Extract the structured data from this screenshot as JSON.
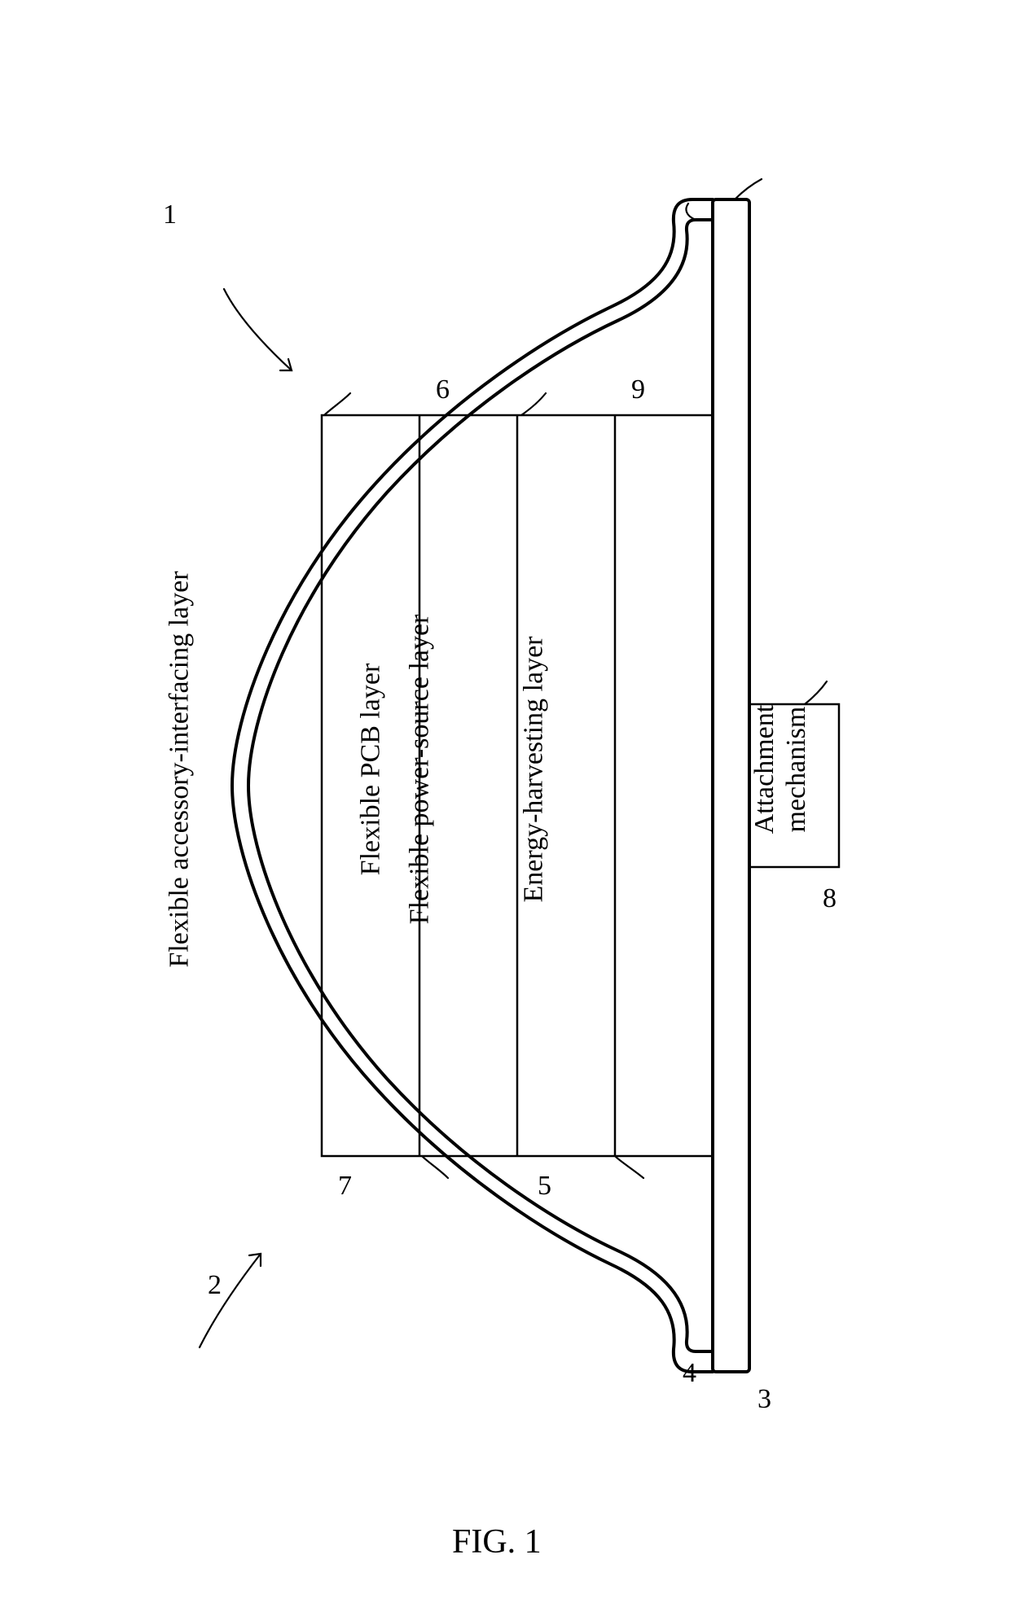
{
  "figure": {
    "caption": "FIG. 1",
    "stroke": "#000000",
    "stroke_width_outer": 4,
    "stroke_width_inner": 2.5,
    "background": "#ffffff"
  },
  "refs": {
    "one": "1",
    "two": "2",
    "three": "3",
    "four": "4",
    "five": "5",
    "six": "6",
    "seven": "7",
    "eight": "8",
    "nine": "9"
  },
  "layers": {
    "top": "Flexible accessory-interfacing layer",
    "pcb": "Flexible PCB layer",
    "power": "Flexible power-source layer",
    "energy": "Energy-harvesting layer"
  },
  "attachment": "Attachment\nmechanism"
}
